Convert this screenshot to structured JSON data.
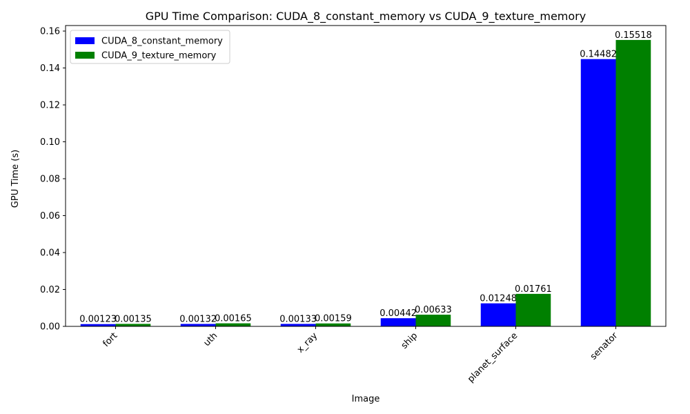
{
  "chart_data": {
    "type": "bar",
    "title": "GPU Time Comparison: CUDA_8_constant_memory vs CUDA_9_texture_memory",
    "xlabel": "Image",
    "ylabel": "GPU Time (s)",
    "categories": [
      "fort",
      "uth",
      "x_ray",
      "ship",
      "planet_surface",
      "senator"
    ],
    "series": [
      {
        "name": "CUDA_8_constant_memory",
        "color": "#0000ff",
        "values": [
          0.00123,
          0.00132,
          0.00133,
          0.00442,
          0.01248,
          0.14482
        ]
      },
      {
        "name": "CUDA_9_texture_memory",
        "color": "#008000",
        "values": [
          0.00135,
          0.00165,
          0.00159,
          0.00633,
          0.01761,
          0.15518
        ]
      }
    ],
    "data_labels": [
      [
        "0.00123",
        "0.00132",
        "0.00133",
        "0.00442",
        "0.01248",
        "0.14482"
      ],
      [
        "0.00135",
        "0.00165",
        "0.00159",
        "0.00633",
        "0.01761",
        "0.15518"
      ]
    ],
    "ylim": [
      0,
      0.163
    ],
    "yticks": [
      0.0,
      0.02,
      0.04,
      0.06,
      0.08,
      0.1,
      0.12,
      0.14,
      0.16
    ],
    "ytick_labels": [
      "0.00",
      "0.02",
      "0.04",
      "0.06",
      "0.08",
      "0.10",
      "0.12",
      "0.14",
      "0.16"
    ],
    "grid": false,
    "legend_position": "top-left"
  }
}
